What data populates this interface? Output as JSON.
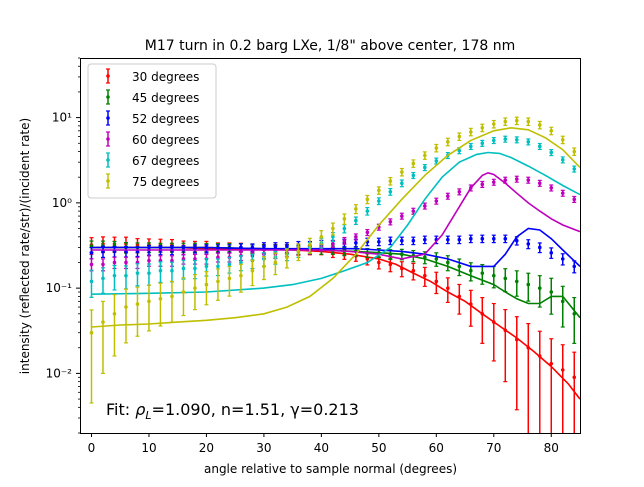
{
  "chart_data": {
    "type": "scatter",
    "title": "M17 turn in 0.2 barg LXe, 1/8\" above center, 178 nm",
    "xlabel": "angle relative to sample normal (degrees)",
    "ylabel": "intensity (reflected rate/str)/(incident rate)",
    "xlim": [
      -2,
      85
    ],
    "ylim": [
      0.002,
      50
    ],
    "yscale": "log",
    "x_ticks": [
      "0",
      "10",
      "20",
      "30",
      "40",
      "50",
      "60",
      "70",
      "80"
    ],
    "y_ticks": [
      "10⁻²",
      "10⁻¹",
      "10⁰",
      "10¹"
    ],
    "legend_position": "upper-left",
    "annotation": "Fit: ρL=1.090, n=1.51, γ=0.213",
    "annotation_parts": {
      "prefix": "Fit: ",
      "rho": "ρ",
      "rho_sub": "L",
      "rest": "=1.090, n=1.51, γ=0.213"
    },
    "series": [
      {
        "name": "30 degrees",
        "color": "#ff0000",
        "data_x": [
          0,
          2,
          4,
          6,
          8,
          10,
          12,
          14,
          16,
          18,
          20,
          22,
          24,
          26,
          28,
          30,
          32,
          34,
          36,
          38,
          40,
          42,
          44,
          46,
          48,
          50,
          52,
          54,
          56,
          58,
          60,
          62,
          64,
          66,
          68,
          70,
          72,
          74,
          76,
          78,
          80,
          82,
          84
        ],
        "data_y": [
          0.32,
          0.33,
          0.33,
          0.33,
          0.32,
          0.32,
          0.32,
          0.32,
          0.31,
          0.31,
          0.31,
          0.3,
          0.3,
          0.3,
          0.29,
          0.29,
          0.29,
          0.29,
          0.28,
          0.28,
          0.28,
          0.26,
          0.25,
          0.24,
          0.22,
          0.2,
          0.19,
          0.17,
          0.16,
          0.14,
          0.12,
          0.1,
          0.08,
          0.065,
          0.05,
          0.04,
          0.032,
          0.025,
          0.02,
          0.016,
          0.013,
          0.011,
          0.009
        ],
        "err_rel": [
          0.22,
          0.21,
          0.2,
          0.2,
          0.19,
          0.18,
          0.17,
          0.16,
          0.15,
          0.14,
          0.14,
          0.13,
          0.13,
          0.12,
          0.12,
          0.12,
          0.12,
          0.12,
          0.12,
          0.12,
          0.12,
          0.12,
          0.13,
          0.14,
          0.15,
          0.16,
          0.18,
          0.2,
          0.22,
          0.25,
          0.28,
          0.32,
          0.38,
          0.45,
          0.55,
          0.65,
          0.75,
          0.85,
          0.92,
          0.95,
          0.96,
          0.97,
          0.97
        ],
        "fit_x": [
          0,
          5,
          10,
          15,
          20,
          25,
          30,
          35,
          40,
          45,
          50,
          53,
          56,
          59,
          62,
          65,
          68,
          71,
          74,
          77,
          80,
          83,
          85
        ],
        "fit_y": [
          0.3,
          0.3,
          0.3,
          0.3,
          0.29,
          0.29,
          0.29,
          0.28,
          0.27,
          0.25,
          0.22,
          0.19,
          0.15,
          0.12,
          0.09,
          0.07,
          0.05,
          0.036,
          0.026,
          0.018,
          0.012,
          0.0075,
          0.005
        ]
      },
      {
        "name": "45 degrees",
        "color": "#008000",
        "data_x": [
          0,
          2,
          4,
          6,
          8,
          10,
          12,
          14,
          16,
          18,
          20,
          22,
          24,
          26,
          28,
          30,
          32,
          34,
          36,
          38,
          40,
          42,
          44,
          46,
          48,
          50,
          52,
          54,
          56,
          58,
          60,
          62,
          64,
          66,
          68,
          70,
          72,
          74,
          76,
          78,
          80,
          82,
          84
        ],
        "data_y": [
          0.31,
          0.31,
          0.31,
          0.3,
          0.3,
          0.3,
          0.3,
          0.3,
          0.3,
          0.3,
          0.3,
          0.3,
          0.3,
          0.3,
          0.29,
          0.29,
          0.29,
          0.29,
          0.28,
          0.28,
          0.28,
          0.28,
          0.27,
          0.27,
          0.26,
          0.26,
          0.25,
          0.25,
          0.24,
          0.23,
          0.22,
          0.2,
          0.18,
          0.16,
          0.15,
          0.14,
          0.13,
          0.12,
          0.11,
          0.1,
          0.09,
          0.07,
          0.05
        ],
        "err_rel": [
          0.15,
          0.15,
          0.14,
          0.14,
          0.13,
          0.13,
          0.12,
          0.12,
          0.12,
          0.12,
          0.11,
          0.11,
          0.11,
          0.11,
          0.11,
          0.11,
          0.11,
          0.11,
          0.11,
          0.11,
          0.11,
          0.11,
          0.11,
          0.12,
          0.12,
          0.12,
          0.13,
          0.14,
          0.15,
          0.16,
          0.18,
          0.2,
          0.22,
          0.24,
          0.26,
          0.28,
          0.3,
          0.33,
          0.36,
          0.4,
          0.45,
          0.5,
          0.55
        ],
        "fit_x": [
          0,
          10,
          20,
          30,
          40,
          46,
          50,
          54,
          58,
          62,
          66,
          70,
          72,
          74,
          76,
          78,
          80,
          82,
          85
        ],
        "fit_y": [
          0.3,
          0.3,
          0.3,
          0.29,
          0.28,
          0.27,
          0.26,
          0.25,
          0.22,
          0.18,
          0.14,
          0.11,
          0.09,
          0.075,
          0.066,
          0.066,
          0.08,
          0.08,
          0.045
        ]
      },
      {
        "name": "52 degrees",
        "color": "#0000ff",
        "data_x": [
          0,
          2,
          4,
          6,
          8,
          10,
          12,
          14,
          16,
          18,
          20,
          22,
          24,
          26,
          28,
          30,
          32,
          34,
          36,
          38,
          40,
          42,
          44,
          46,
          48,
          50,
          52,
          54,
          56,
          58,
          60,
          62,
          64,
          66,
          68,
          70,
          72,
          74,
          76,
          78,
          80,
          82,
          84
        ],
        "data_y": [
          0.26,
          0.27,
          0.27,
          0.27,
          0.27,
          0.28,
          0.28,
          0.28,
          0.28,
          0.29,
          0.29,
          0.29,
          0.29,
          0.3,
          0.3,
          0.31,
          0.31,
          0.31,
          0.32,
          0.32,
          0.33,
          0.33,
          0.34,
          0.34,
          0.35,
          0.35,
          0.36,
          0.36,
          0.36,
          0.37,
          0.37,
          0.37,
          0.37,
          0.38,
          0.38,
          0.38,
          0.38,
          0.36,
          0.33,
          0.3,
          0.26,
          0.22,
          0.18
        ],
        "err_rel": [
          0.15,
          0.15,
          0.14,
          0.14,
          0.13,
          0.13,
          0.12,
          0.12,
          0.12,
          0.11,
          0.11,
          0.11,
          0.11,
          0.1,
          0.1,
          0.1,
          0.1,
          0.1,
          0.1,
          0.1,
          0.1,
          0.1,
          0.1,
          0.1,
          0.1,
          0.1,
          0.1,
          0.1,
          0.1,
          0.1,
          0.1,
          0.1,
          0.1,
          0.1,
          0.1,
          0.1,
          0.1,
          0.11,
          0.12,
          0.13,
          0.14,
          0.15,
          0.16
        ],
        "fit_x": [
          0,
          10,
          20,
          30,
          40,
          46,
          50,
          54,
          58,
          62,
          66,
          70,
          72,
          74,
          76,
          78,
          80,
          82,
          85
        ],
        "fit_y": [
          0.3,
          0.3,
          0.3,
          0.29,
          0.29,
          0.29,
          0.28,
          0.27,
          0.25,
          0.22,
          0.18,
          0.18,
          0.25,
          0.4,
          0.5,
          0.48,
          0.38,
          0.28,
          0.18
        ]
      },
      {
        "name": "60 degrees",
        "color": "#bf00bf",
        "data_x": [
          0,
          2,
          4,
          6,
          8,
          10,
          12,
          14,
          16,
          18,
          20,
          22,
          24,
          26,
          28,
          30,
          32,
          34,
          36,
          38,
          40,
          42,
          44,
          46,
          48,
          50,
          52,
          54,
          56,
          58,
          60,
          62,
          64,
          66,
          68,
          70,
          72,
          74,
          76,
          78,
          80,
          82,
          84
        ],
        "data_y": [
          0.19,
          0.19,
          0.2,
          0.2,
          0.2,
          0.21,
          0.21,
          0.21,
          0.22,
          0.22,
          0.22,
          0.23,
          0.23,
          0.24,
          0.24,
          0.25,
          0.25,
          0.26,
          0.27,
          0.28,
          0.3,
          0.33,
          0.36,
          0.4,
          0.45,
          0.52,
          0.6,
          0.7,
          0.8,
          0.92,
          1.05,
          1.2,
          1.35,
          1.5,
          1.65,
          1.75,
          1.85,
          1.9,
          1.85,
          1.7,
          1.5,
          1.3,
          1.1
        ],
        "err_rel": [
          0.16,
          0.16,
          0.15,
          0.15,
          0.15,
          0.14,
          0.14,
          0.14,
          0.13,
          0.13,
          0.13,
          0.12,
          0.12,
          0.12,
          0.11,
          0.11,
          0.11,
          0.1,
          0.1,
          0.1,
          0.09,
          0.09,
          0.09,
          0.08,
          0.08,
          0.08,
          0.08,
          0.08,
          0.08,
          0.08,
          0.08,
          0.08,
          0.08,
          0.08,
          0.08,
          0.08,
          0.08,
          0.08,
          0.08,
          0.08,
          0.08,
          0.08,
          0.08
        ],
        "fit_x": [
          0,
          10,
          20,
          30,
          40,
          45,
          50,
          54,
          58,
          61,
          64,
          66,
          68,
          69,
          70,
          72,
          74,
          76,
          78,
          80,
          82,
          85
        ],
        "fit_y": [
          0.28,
          0.28,
          0.28,
          0.28,
          0.28,
          0.27,
          0.25,
          0.22,
          0.25,
          0.42,
          0.9,
          1.5,
          2.1,
          2.25,
          2.15,
          1.7,
          1.3,
          1.0,
          0.8,
          0.65,
          0.55,
          0.46
        ]
      },
      {
        "name": "67 degrees",
        "color": "#00bfbf",
        "data_x": [
          0,
          2,
          4,
          6,
          8,
          10,
          12,
          14,
          16,
          18,
          20,
          22,
          24,
          26,
          28,
          30,
          32,
          34,
          36,
          38,
          40,
          42,
          44,
          46,
          48,
          50,
          52,
          54,
          56,
          58,
          60,
          62,
          64,
          66,
          68,
          70,
          72,
          74,
          76,
          78,
          80,
          82,
          84
        ],
        "data_y": [
          0.12,
          0.13,
          0.14,
          0.14,
          0.15,
          0.15,
          0.16,
          0.16,
          0.17,
          0.17,
          0.18,
          0.18,
          0.19,
          0.2,
          0.21,
          0.22,
          0.23,
          0.25,
          0.27,
          0.3,
          0.34,
          0.4,
          0.5,
          0.62,
          0.8,
          1.05,
          1.35,
          1.7,
          2.1,
          2.6,
          3.1,
          3.6,
          4.1,
          4.6,
          5.0,
          5.4,
          5.6,
          5.5,
          5.2,
          4.6,
          3.9,
          3.2,
          2.5
        ],
        "err_rel": [
          0.35,
          0.33,
          0.32,
          0.3,
          0.29,
          0.28,
          0.27,
          0.26,
          0.25,
          0.24,
          0.23,
          0.22,
          0.21,
          0.2,
          0.19,
          0.18,
          0.17,
          0.16,
          0.15,
          0.14,
          0.13,
          0.12,
          0.11,
          0.1,
          0.1,
          0.09,
          0.09,
          0.09,
          0.08,
          0.08,
          0.08,
          0.08,
          0.08,
          0.08,
          0.08,
          0.08,
          0.08,
          0.08,
          0.08,
          0.08,
          0.08,
          0.08,
          0.08
        ],
        "fit_x": [
          0,
          10,
          20,
          30,
          35,
          40,
          44,
          48,
          52,
          55,
          58,
          61,
          64,
          67,
          69,
          71,
          73,
          76,
          79,
          82,
          85
        ],
        "fit_y": [
          0.085,
          0.087,
          0.09,
          0.1,
          0.11,
          0.13,
          0.16,
          0.2,
          0.3,
          0.55,
          1.1,
          2.0,
          3.0,
          3.7,
          3.9,
          3.8,
          3.4,
          2.7,
          2.1,
          1.6,
          1.25
        ]
      },
      {
        "name": "75 degrees",
        "color": "#bfbf00",
        "data_x": [
          0,
          2,
          4,
          6,
          8,
          10,
          12,
          14,
          16,
          18,
          20,
          22,
          24,
          26,
          28,
          30,
          32,
          34,
          36,
          38,
          40,
          42,
          44,
          46,
          48,
          50,
          52,
          54,
          56,
          58,
          60,
          62,
          64,
          66,
          68,
          70,
          72,
          74,
          76,
          78,
          80,
          82,
          84
        ],
        "data_y": [
          0.03,
          0.04,
          0.05,
          0.06,
          0.065,
          0.07,
          0.075,
          0.08,
          0.09,
          0.1,
          0.11,
          0.12,
          0.13,
          0.14,
          0.16,
          0.18,
          0.2,
          0.23,
          0.27,
          0.32,
          0.4,
          0.5,
          0.65,
          0.85,
          1.1,
          1.4,
          1.8,
          2.3,
          2.9,
          3.6,
          4.4,
          5.2,
          6.0,
          6.8,
          7.6,
          8.4,
          9.0,
          9.2,
          9.0,
          8.2,
          7.0,
          5.5,
          4.0
        ],
        "err_rel": [
          0.85,
          0.75,
          0.68,
          0.62,
          0.58,
          0.55,
          0.52,
          0.5,
          0.47,
          0.44,
          0.42,
          0.4,
          0.38,
          0.36,
          0.33,
          0.3,
          0.28,
          0.25,
          0.22,
          0.2,
          0.18,
          0.16,
          0.14,
          0.12,
          0.11,
          0.1,
          0.1,
          0.1,
          0.1,
          0.1,
          0.1,
          0.1,
          0.1,
          0.1,
          0.1,
          0.1,
          0.1,
          0.1,
          0.1,
          0.1,
          0.1,
          0.1,
          0.1
        ],
        "fit_x": [
          0,
          5,
          10,
          15,
          20,
          25,
          30,
          34,
          38,
          42,
          46,
          50,
          54,
          58,
          62,
          66,
          70,
          73,
          76,
          79,
          82,
          85
        ],
        "fit_y": [
          0.035,
          0.037,
          0.038,
          0.04,
          0.042,
          0.045,
          0.05,
          0.06,
          0.08,
          0.13,
          0.25,
          0.55,
          1.1,
          2.1,
          3.6,
          5.4,
          7.0,
          7.6,
          7.2,
          5.8,
          4.2,
          2.6
        ]
      }
    ]
  }
}
